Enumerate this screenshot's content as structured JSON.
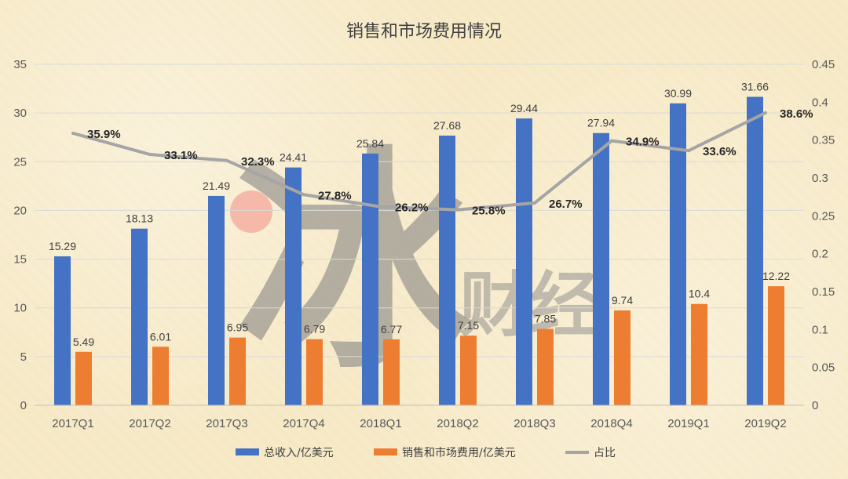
{
  "chart_data": {
    "type": "bar",
    "title": "销售和市场费用情况",
    "categories": [
      "2017Q1",
      "2017Q2",
      "2017Q3",
      "2017Q4",
      "2018Q1",
      "2018Q2",
      "2018Q3",
      "2018Q4",
      "2019Q1",
      "2019Q2"
    ],
    "series": [
      {
        "name": "总收入/亿美元",
        "type": "bar",
        "color": "#4472c4",
        "axis": "left",
        "values": [
          15.29,
          18.13,
          21.49,
          24.41,
          25.84,
          27.68,
          29.44,
          27.94,
          30.99,
          31.66
        ],
        "labels": [
          "15.29",
          "18.13",
          "21.49",
          "24.41",
          "25.84",
          "27.68",
          "29.44",
          "27.94",
          "30.99",
          "31.66"
        ]
      },
      {
        "name": "销售和市场费用/亿美元",
        "type": "bar",
        "color": "#ed7d31",
        "axis": "left",
        "values": [
          5.49,
          6.01,
          6.95,
          6.79,
          6.77,
          7.15,
          7.85,
          9.74,
          10.4,
          12.22
        ],
        "labels": [
          "5.49",
          "6.01",
          "6.95",
          "6.79",
          "6.77",
          "7.15",
          "7.85",
          "9.74",
          "10.4",
          "12.22"
        ]
      },
      {
        "name": "占比",
        "type": "line",
        "color": "#a5a5a5",
        "axis": "right",
        "values": [
          0.359,
          0.331,
          0.323,
          0.278,
          0.262,
          0.258,
          0.267,
          0.349,
          0.336,
          0.386
        ],
        "labels": [
          "35.9%",
          "33.1%",
          "32.3%",
          "27.8%",
          "26.2%",
          "25.8%",
          "26.7%",
          "34.9%",
          "33.6%",
          "38.6%"
        ]
      }
    ],
    "y_left": {
      "min": 0,
      "max": 35,
      "ticks": [
        "0",
        "5",
        "10",
        "15",
        "20",
        "25",
        "30",
        "35"
      ]
    },
    "y_right": {
      "min": 0,
      "max": 0.45,
      "ticks": [
        "0",
        "0.05",
        "0.1",
        "0.15",
        "0.2",
        "0.25",
        "0.3",
        "0.35",
        "0.4",
        "0.45"
      ]
    },
    "grid": true,
    "legend_position": "bottom",
    "watermark": "财经"
  }
}
